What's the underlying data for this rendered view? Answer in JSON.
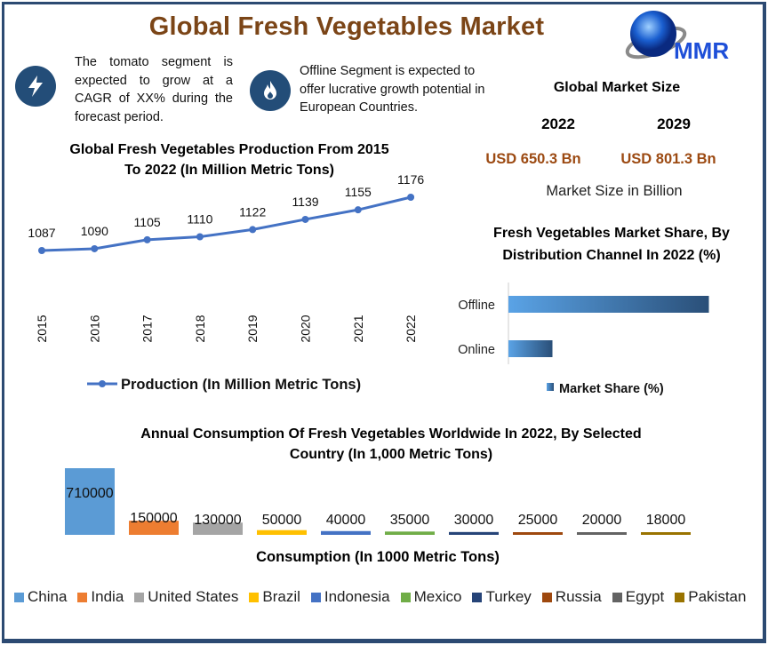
{
  "header": {
    "title": "Global Fresh Vegetables Market",
    "logo_text": "MMR"
  },
  "highlights": [
    {
      "icon": "lightning-icon",
      "text": "The tomato segment is expected to grow at a CAGR of XX% during the forecast period."
    },
    {
      "icon": "flame-icon",
      "text": "Offline Segment is expected to offer lucrative growth potential in European Countries."
    }
  ],
  "market_size": {
    "title": "Global Market Size",
    "years": [
      "2022",
      "2029"
    ],
    "values": [
      "USD 650.3 Bn",
      "USD 801.3 Bn"
    ],
    "note": "Market Size in Billion",
    "value_color": "#9c4a12"
  },
  "chart_data": [
    {
      "type": "line",
      "title": "Global Fresh Vegetables Production From 2015 To 2022 (In Million Metric Tons)",
      "x": [
        "2015",
        "2016",
        "2017",
        "2018",
        "2019",
        "2020",
        "2021",
        "2022"
      ],
      "series": [
        {
          "name": "Production (In Million Metric Tons)",
          "values": [
            1087,
            1090,
            1105,
            1110,
            1122,
            1139,
            1155,
            1176
          ],
          "color": "#4472c4"
        }
      ],
      "legend": "bottom",
      "grid": false
    },
    {
      "type": "bar",
      "orientation": "horizontal",
      "title": "Fresh Vegetables Market Share, By Distribution Channel In 2022 (%)",
      "categories": [
        "Offline",
        "Online"
      ],
      "series": [
        {
          "name": "Market Share (%)",
          "values": [
            82,
            18
          ],
          "color": "#2e75b6"
        }
      ],
      "legend": "bottom",
      "xlim": [
        0,
        100
      ]
    },
    {
      "type": "bar",
      "title": "Annual Consumption Of Fresh Vegetables Worldwide In 2022, By Selected Country (In 1,000 Metric Tons)",
      "xlabel": "Consumption (In 1000 Metric Tons)",
      "categories": [
        "China",
        "India",
        "United States",
        "Brazil",
        "Indonesia",
        "Mexico",
        "Turkey",
        "Russia",
        "Egypt",
        "Pakistan"
      ],
      "values": [
        710000,
        150000,
        130000,
        50000,
        40000,
        35000,
        30000,
        25000,
        20000,
        18000
      ],
      "colors": [
        "#5b9bd5",
        "#ed7d31",
        "#a5a5a5",
        "#ffc000",
        "#4472c4",
        "#70ad47",
        "#264478",
        "#9e480e",
        "#636363",
        "#997300"
      ],
      "legend": "bottom"
    }
  ]
}
